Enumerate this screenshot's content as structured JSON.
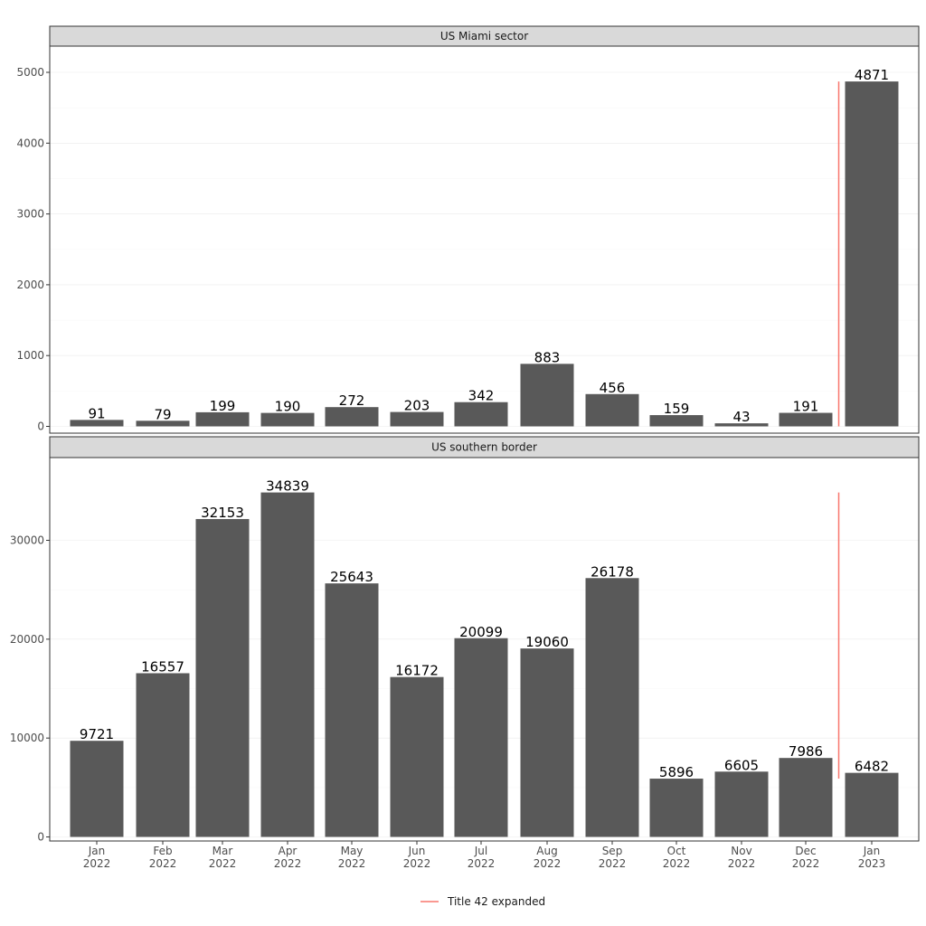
{
  "chart_data": {
    "type": "bar",
    "categories": [
      [
        "Jan",
        "2022"
      ],
      [
        "Feb",
        "2022"
      ],
      [
        "Mar",
        "2022"
      ],
      [
        "Apr",
        "2022"
      ],
      [
        "May",
        "2022"
      ],
      [
        "Jun",
        "2022"
      ],
      [
        "Jul",
        "2022"
      ],
      [
        "Aug",
        "2022"
      ],
      [
        "Sep",
        "2022"
      ],
      [
        "Oct",
        "2022"
      ],
      [
        "Nov",
        "2022"
      ],
      [
        "Dec",
        "2022"
      ],
      [
        "Jan",
        "2023"
      ]
    ],
    "x_dates": [
      "2022-01",
      "2022-02",
      "2022-03",
      "2022-04",
      "2022-05",
      "2022-06",
      "2022-07",
      "2022-08",
      "2022-09",
      "2022-10",
      "2022-11",
      "2022-12",
      "2023-01"
    ],
    "facets": [
      {
        "title": "US Miami sector",
        "values": [
          91,
          79,
          199,
          190,
          272,
          203,
          342,
          883,
          456,
          159,
          43,
          191,
          4871
        ],
        "ylim": [
          0,
          5200
        ],
        "yticks": [
          0,
          1000,
          2000,
          3000,
          4000,
          5000
        ],
        "vline": {
          "x": "2023-01-01",
          "y_start": 0,
          "y_end": 4871
        }
      },
      {
        "title": "US southern border",
        "values": [
          9721,
          16557,
          32153,
          34839,
          25643,
          16172,
          20099,
          19060,
          26178,
          5896,
          6605,
          7986,
          6482
        ],
        "ylim": [
          0,
          38000
        ],
        "yticks": [
          0,
          10000,
          20000,
          30000
        ],
        "vline": {
          "x": "2023-01-01",
          "y_start": 5896,
          "y_end": 34839
        }
      }
    ],
    "bar_color": "#595959",
    "vline_color": "#F8766D",
    "legend": {
      "entries": [
        {
          "label": "Title 42 expanded",
          "color": "#F8766D"
        }
      ],
      "position": "bottom"
    },
    "grid": true,
    "xlabel": "",
    "ylabel": ""
  }
}
